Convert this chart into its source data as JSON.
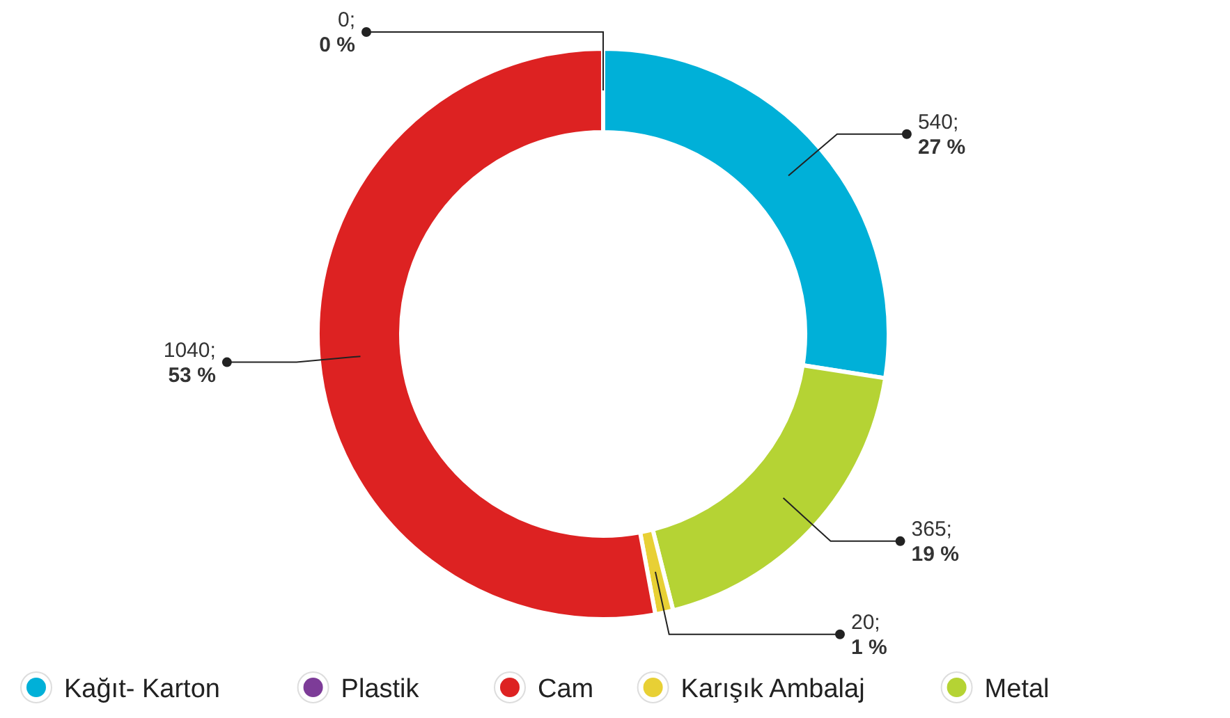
{
  "chart_data": {
    "type": "donut",
    "categories": [
      "Kağıt- Karton",
      "Metal",
      "Karışık Ambalaj",
      "Cam",
      "Plastik"
    ],
    "values": [
      540,
      365,
      20,
      1040,
      0
    ],
    "colors": [
      "#00b0d8",
      "#b5d334",
      "#e8d035",
      "#dd2222",
      "#7d3c98"
    ],
    "value_labels": [
      "540; 27 %",
      "365; 19 %",
      "20; 1 %",
      "1040; 53 %",
      "0; 0 %"
    ],
    "legend": "bottom"
  }
}
